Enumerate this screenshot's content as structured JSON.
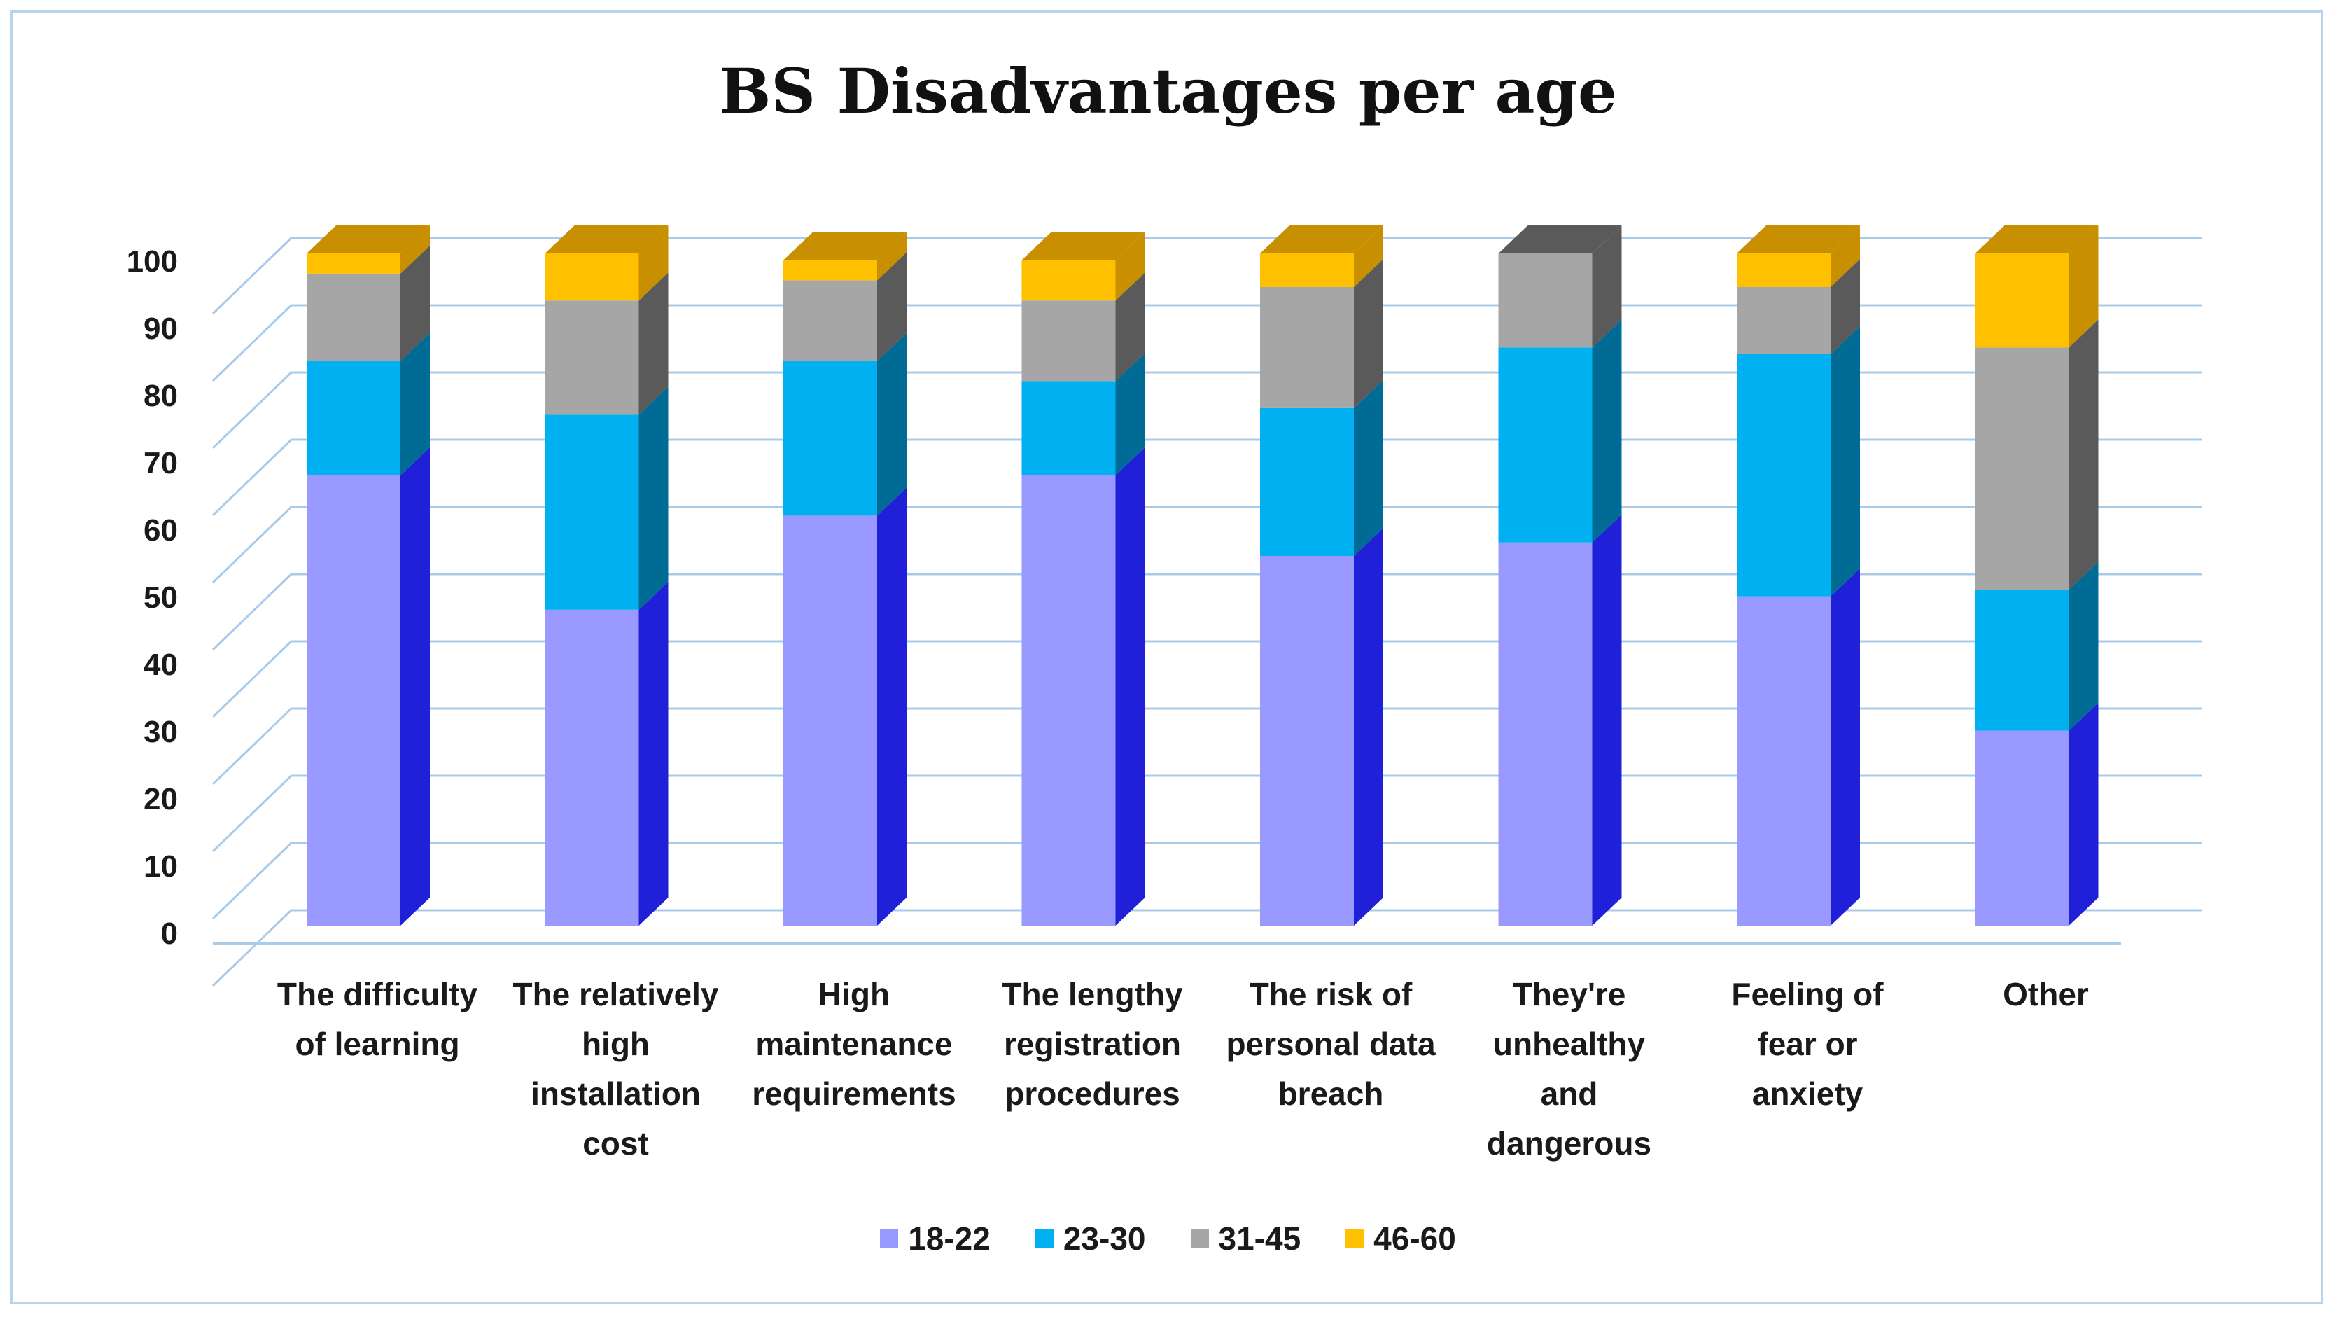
{
  "chart_data": {
    "type": "bar",
    "stacked": true,
    "title": "BS Disadvantages per age",
    "categories": [
      [
        "The difficulty",
        "of learning"
      ],
      [
        "The relatively",
        "high",
        "installation",
        "cost"
      ],
      [
        "High",
        "maintenance",
        "requirements"
      ],
      [
        "The lengthy",
        "registration",
        "procedures"
      ],
      [
        "The risk of",
        "personal data",
        "breach"
      ],
      [
        "They're",
        "unhealthy",
        "and",
        "dangerous"
      ],
      [
        "Feeling of",
        "fear or",
        "anxiety"
      ],
      [
        "Other"
      ]
    ],
    "series": [
      {
        "name": "18-22",
        "color": "#9999ff",
        "side": "#2020d8",
        "values": [
          67,
          47,
          61,
          67,
          55,
          57,
          49,
          29
        ]
      },
      {
        "name": "23-30",
        "color": "#00b0f0",
        "side": "#006c96",
        "values": [
          17,
          29,
          23,
          14,
          22,
          29,
          36,
          21
        ]
      },
      {
        "name": "31-45",
        "color": "#a6a6a6",
        "side": "#5a5a5a",
        "values": [
          13,
          17,
          12,
          12,
          18,
          14,
          10,
          36
        ]
      },
      {
        "name": "46-60",
        "color": "#ffc000",
        "side": "#c89000",
        "values": [
          3,
          7,
          3,
          6,
          5,
          0,
          5,
          14
        ]
      }
    ],
    "ylim": [
      0,
      100
    ],
    "yticks": [
      "0",
      "10",
      "20",
      "30",
      "40",
      "50",
      "60",
      "70",
      "80",
      "90",
      "100"
    ],
    "grid": true,
    "legend_position": "bottom"
  }
}
